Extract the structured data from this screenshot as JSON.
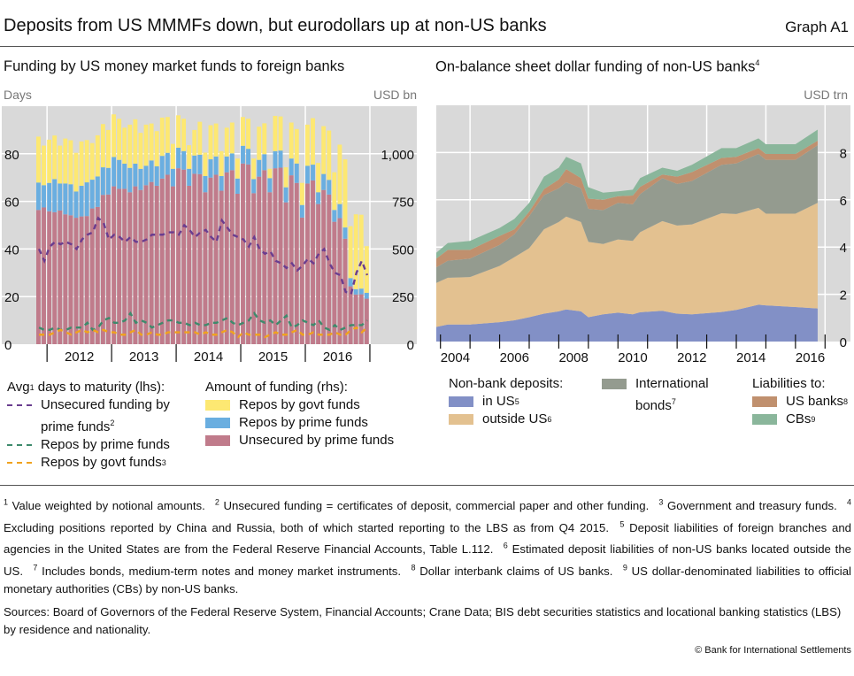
{
  "header": {
    "title": "Deposits from US MMMFs down, but eurodollars up at non-US banks",
    "graph_no": "Graph A1"
  },
  "chart_data": [
    {
      "type": "bar",
      "title": "Funding by US money market funds to foreign banks",
      "ylabel_left": "Days",
      "ylabel_right": "USD bn",
      "ylim_left": [
        0,
        100
      ],
      "ylim_right": [
        0,
        1250
      ],
      "yticks_left": [
        "0",
        "20",
        "40",
        "60",
        "80"
      ],
      "yticks_left_values": [
        0,
        20,
        40,
        60,
        80
      ],
      "yticks_right": [
        "0",
        "250",
        "500",
        "750",
        "1,000"
      ],
      "xticks": [
        "2012",
        "2013",
        "2014",
        "2015",
        "2016"
      ],
      "start_month": "2011-11",
      "frequency": "monthly",
      "stacked": true,
      "grid": true,
      "legend_left_title": "Avg",
      "legend_left_title_sup": "1",
      "legend_left_title_rest": "days to maturity (lhs):",
      "legend_right_title": "Amount of funding (rhs):",
      "bar_series": [
        {
          "name": "Unsecured by prime funds",
          "color": "#c07b8b",
          "values": [
            705,
            718,
            698,
            693,
            702,
            682,
            677,
            664,
            671,
            673,
            713,
            721,
            784,
            786,
            829,
            816,
            816,
            798,
            829,
            810,
            835,
            852,
            832,
            870,
            890,
            829,
            924,
            917,
            832,
            895,
            893,
            798,
            875,
            890,
            806,
            903,
            914,
            790,
            949,
            944,
            793,
            880,
            914,
            798,
            924,
            927,
            745,
            887,
            847,
            665,
            844,
            860,
            736,
            810,
            786,
            643,
            662,
            554,
            304,
            261,
            262,
            239
          ]
        },
        {
          "name": "Repos by prime funds",
          "color": "#6aaee0",
          "values": [
            144,
            117,
            149,
            174,
            142,
            162,
            163,
            138,
            161,
            177,
            151,
            160,
            145,
            140,
            154,
            152,
            132,
            128,
            119,
            111,
            102,
            113,
            102,
            119,
            115,
            92,
            108,
            97,
            89,
            96,
            102,
            85,
            96,
            96,
            77,
            83,
            88,
            80,
            93,
            82,
            74,
            88,
            84,
            74,
            90,
            90,
            79,
            88,
            102,
            66,
            93,
            83,
            62,
            84,
            77,
            62,
            74,
            59,
            43,
            28,
            30,
            31
          ]
        },
        {
          "name": "Repos by govt funds",
          "color": "#fde872",
          "values": [
            241,
            208,
            227,
            229,
            199,
            236,
            231,
            203,
            233,
            222,
            192,
            216,
            227,
            199,
            224,
            216,
            189,
            227,
            233,
            189,
            216,
            194,
            185,
            201,
            188,
            131,
            170,
            170,
            124,
            134,
            173,
            123,
            179,
            173,
            131,
            151,
            162,
            105,
            151,
            158,
            108,
            174,
            162,
            49,
            185,
            179,
            105,
            189,
            181,
            116,
            216,
            244,
            154,
            251,
            259,
            198,
            312,
            358,
            273,
            393,
            388,
            245
          ]
        }
      ],
      "line_series": [
        {
          "name": "Unsecured funding by prime funds",
          "sup": "2",
          "color": "#6a3d8f",
          "values": [
            40,
            35,
            41,
            43,
            42,
            43,
            42,
            40,
            44,
            46,
            47,
            53,
            51,
            44,
            46,
            45,
            43,
            45,
            43,
            43,
            44,
            46,
            46,
            46,
            47,
            47,
            46,
            50,
            48,
            45,
            47,
            48,
            45,
            43,
            52,
            49,
            46,
            45,
            44,
            41,
            45,
            40,
            38,
            39,
            35,
            34,
            32,
            34,
            31,
            33,
            36,
            34,
            38,
            40,
            34,
            30,
            29,
            22,
            21,
            30,
            35,
            29
          ]
        },
        {
          "name": "Repos by prime funds",
          "sup": "",
          "color": "#3e8a6c",
          "values": [
            7,
            6,
            6,
            7,
            6,
            6,
            7,
            7,
            7,
            9,
            6,
            7,
            10,
            11,
            9,
            9,
            10,
            13,
            9,
            10,
            9,
            7,
            8,
            9,
            10,
            10,
            9,
            9,
            8,
            9,
            8,
            8,
            9,
            9,
            10,
            11,
            9,
            8,
            9,
            10,
            13,
            10,
            9,
            10,
            8,
            10,
            12,
            7,
            8,
            10,
            9,
            8,
            10,
            7,
            6,
            8,
            6,
            7,
            8,
            8,
            8,
            10
          ]
        },
        {
          "name": "Repos by govt funds",
          "sup": "3",
          "color": "#f0a21e",
          "values": [
            4,
            4,
            4,
            5,
            6,
            5,
            4,
            5,
            6,
            5,
            6,
            5,
            6,
            5,
            5,
            4,
            4,
            5,
            6,
            4,
            4,
            5,
            4,
            4,
            5,
            5,
            5,
            5,
            5,
            5,
            4,
            5,
            4,
            4,
            5,
            6,
            5,
            3,
            5,
            4,
            4,
            4,
            3,
            4,
            5,
            4,
            4,
            5,
            6,
            4,
            4,
            5,
            4,
            4,
            4,
            5,
            4,
            4,
            6,
            7,
            5,
            7
          ]
        }
      ]
    },
    {
      "type": "area",
      "title": "On-balance sheet dollar funding of non-US banks",
      "title_sup": "4",
      "ylabel_right": "USD trn",
      "ylim": [
        0,
        10
      ],
      "yticks": [
        "0",
        "2",
        "4",
        "6",
        "8"
      ],
      "yticks_values": [
        0,
        2,
        4,
        6,
        8
      ],
      "xticks": [
        "2004",
        "2006",
        "2008",
        "2010",
        "2012",
        "2014",
        "2016"
      ],
      "xlim": [
        2003.75,
        2017.25
      ],
      "stacked": true,
      "grid": true,
      "x": [
        "2003-Q4",
        "2004-Q2",
        "2005-Q1",
        "2006-Q1",
        "2006-Q3",
        "2007-Q1",
        "2007-Q3",
        "2008-Q1",
        "2008-Q2",
        "2008-Q4",
        "2009-Q1",
        "2009-Q3",
        "2010-Q1",
        "2010-Q3",
        "2010-Q4",
        "2011-Q3",
        "2012-Q1",
        "2012-Q3",
        "2013-Q3",
        "2014-Q1",
        "2014-Q4",
        "2015-Q1",
        "2016-Q1",
        "2016-Q4"
      ],
      "legend_group_titles": {
        "deposits": "Non-bank deposits:",
        "liabilities": "Liabilities to:"
      },
      "series": [
        {
          "name": "in US",
          "sup": "5",
          "color": "#8290c6",
          "values": [
            0.62,
            0.72,
            0.72,
            0.82,
            0.9,
            1.03,
            1.18,
            1.28,
            1.36,
            1.28,
            1.03,
            1.15,
            1.22,
            1.15,
            1.24,
            1.3,
            1.18,
            1.15,
            1.25,
            1.34,
            1.56,
            1.53,
            1.46,
            1.4
          ]
        },
        {
          "name": "outside US",
          "sup": "6",
          "color": "#e3c190",
          "values": [
            1.86,
            1.98,
            2.01,
            2.38,
            2.67,
            2.92,
            3.57,
            3.78,
            3.93,
            3.78,
            3.19,
            2.98,
            3.1,
            3.11,
            3.39,
            3.8,
            3.73,
            3.81,
            4.18,
            4.06,
            4.1,
            3.88,
            3.95,
            4.47
          ]
        },
        {
          "name": "International bonds",
          "sup": "7",
          "color": "#949b8f",
          "values": [
            0.66,
            0.72,
            0.78,
            0.89,
            0.97,
            1.36,
            1.45,
            1.43,
            1.45,
            1.43,
            1.4,
            1.43,
            1.55,
            1.55,
            1.61,
            1.82,
            1.76,
            1.84,
            2.05,
            2.14,
            2.28,
            2.28,
            2.28,
            2.44
          ]
        },
        {
          "name": "US banks",
          "sup": "8",
          "color": "#c0906e",
          "values": [
            0.37,
            0.46,
            0.37,
            0.38,
            0.21,
            0.19,
            0.25,
            0.37,
            0.56,
            0.43,
            0.43,
            0.44,
            0.28,
            0.37,
            0.31,
            0.15,
            0.31,
            0.37,
            0.29,
            0.28,
            0.25,
            0.25,
            0.25,
            0.19
          ]
        },
        {
          "name": "CBs",
          "sup": "9",
          "color": "#8ab69b",
          "values": [
            0.25,
            0.29,
            0.38,
            0.34,
            0.44,
            0.37,
            0.53,
            0.5,
            0.52,
            0.62,
            0.48,
            0.3,
            0.21,
            0.25,
            0.37,
            0.29,
            0.25,
            0.31,
            0.42,
            0.37,
            0.41,
            0.41,
            0.41,
            0.47
          ]
        }
      ]
    }
  ],
  "footnotes": [
    {
      "n": "1",
      "t": "Value weighted by notional amounts."
    },
    {
      "n": "2",
      "t": "Unsecured funding = certificates of deposit, commercial paper and other funding."
    },
    {
      "n": "3",
      "t": "Government and treasury funds."
    },
    {
      "n": "4",
      "t": "Excluding positions reported by China and Russia, both of which started reporting to the LBS as from Q4 2015."
    },
    {
      "n": "5",
      "t": "Deposit liabilities of foreign branches and agencies in the United States are from the Federal Reserve Financial Accounts, Table L.112."
    },
    {
      "n": "6",
      "t": "Estimated deposit liabilities of non-US banks located outside the US."
    },
    {
      "n": "7",
      "t": "Includes bonds, medium-term notes and money market instruments."
    },
    {
      "n": "8",
      "t": "Dollar interbank claims of US banks."
    },
    {
      "n": "9",
      "t": "US dollar-denominated liabilities to official monetary authorities (CBs) by non-US banks."
    }
  ],
  "sources": "Sources: Board of Governors of the Federal Reserve System, Financial Accounts; Crane Data; BIS debt securities statistics and locational banking statistics (LBS) by residence and nationality.",
  "copyright": "© Bank for International Settlements",
  "colors": {
    "plot_bg": "#d9d9d9",
    "grid": "#ffffff"
  }
}
